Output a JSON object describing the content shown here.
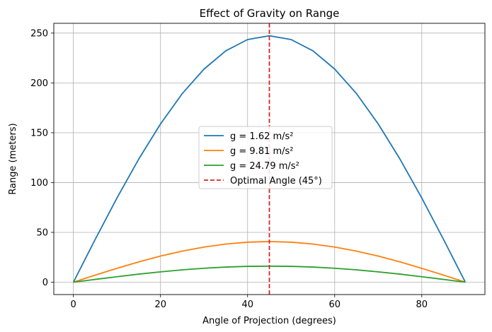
{
  "chart_data": {
    "type": "line",
    "title": "Effect of Gravity on Range",
    "xlabel": "Angle of Projection (degrees)",
    "ylabel": "Range (meters)",
    "xlim": [
      -4.5,
      94.5
    ],
    "ylim": [
      -12.4,
      259.8
    ],
    "xticks": [
      0,
      20,
      40,
      60,
      80
    ],
    "yticks": [
      0,
      50,
      100,
      150,
      200,
      250
    ],
    "grid": true,
    "legend_position": "center",
    "series": [
      {
        "name": "g = 1.62 m/s²",
        "color": "#1f77b4",
        "x": [
          0,
          5,
          10,
          15,
          20,
          25,
          30,
          35,
          40,
          45,
          50,
          55,
          60,
          65,
          70,
          75,
          80,
          85,
          90
        ],
        "values": [
          0,
          42.9,
          84.5,
          123.5,
          158.8,
          189.3,
          213.9,
          232.2,
          243.5,
          247.3,
          243.5,
          232.2,
          213.9,
          189.3,
          158.8,
          123.5,
          84.5,
          42.9,
          0
        ]
      },
      {
        "name": "g = 9.81 m/s²",
        "color": "#ff7f0e",
        "x": [
          0,
          5,
          10,
          15,
          20,
          25,
          30,
          35,
          40,
          45,
          50,
          55,
          60,
          65,
          70,
          75,
          80,
          85,
          90
        ],
        "values": [
          0,
          7.1,
          13.9,
          20.4,
          26.2,
          31.2,
          35.3,
          38.3,
          40.2,
          40.8,
          40.2,
          38.3,
          35.3,
          31.2,
          26.2,
          20.4,
          13.9,
          7.1,
          0
        ]
      },
      {
        "name": "g = 24.79 m/s²",
        "color": "#2ca02c",
        "x": [
          0,
          5,
          10,
          15,
          20,
          25,
          30,
          35,
          40,
          45,
          50,
          55,
          60,
          65,
          70,
          75,
          80,
          85,
          90
        ],
        "values": [
          0,
          2.8,
          5.5,
          8.1,
          10.4,
          12.4,
          14.0,
          15.2,
          15.9,
          16.1,
          15.9,
          15.2,
          14.0,
          12.4,
          10.4,
          8.1,
          5.5,
          2.8,
          0
        ]
      }
    ],
    "vline": {
      "name": "Optimal Angle (45°)",
      "x": 45,
      "color": "#d62728",
      "style": "dashed"
    }
  }
}
